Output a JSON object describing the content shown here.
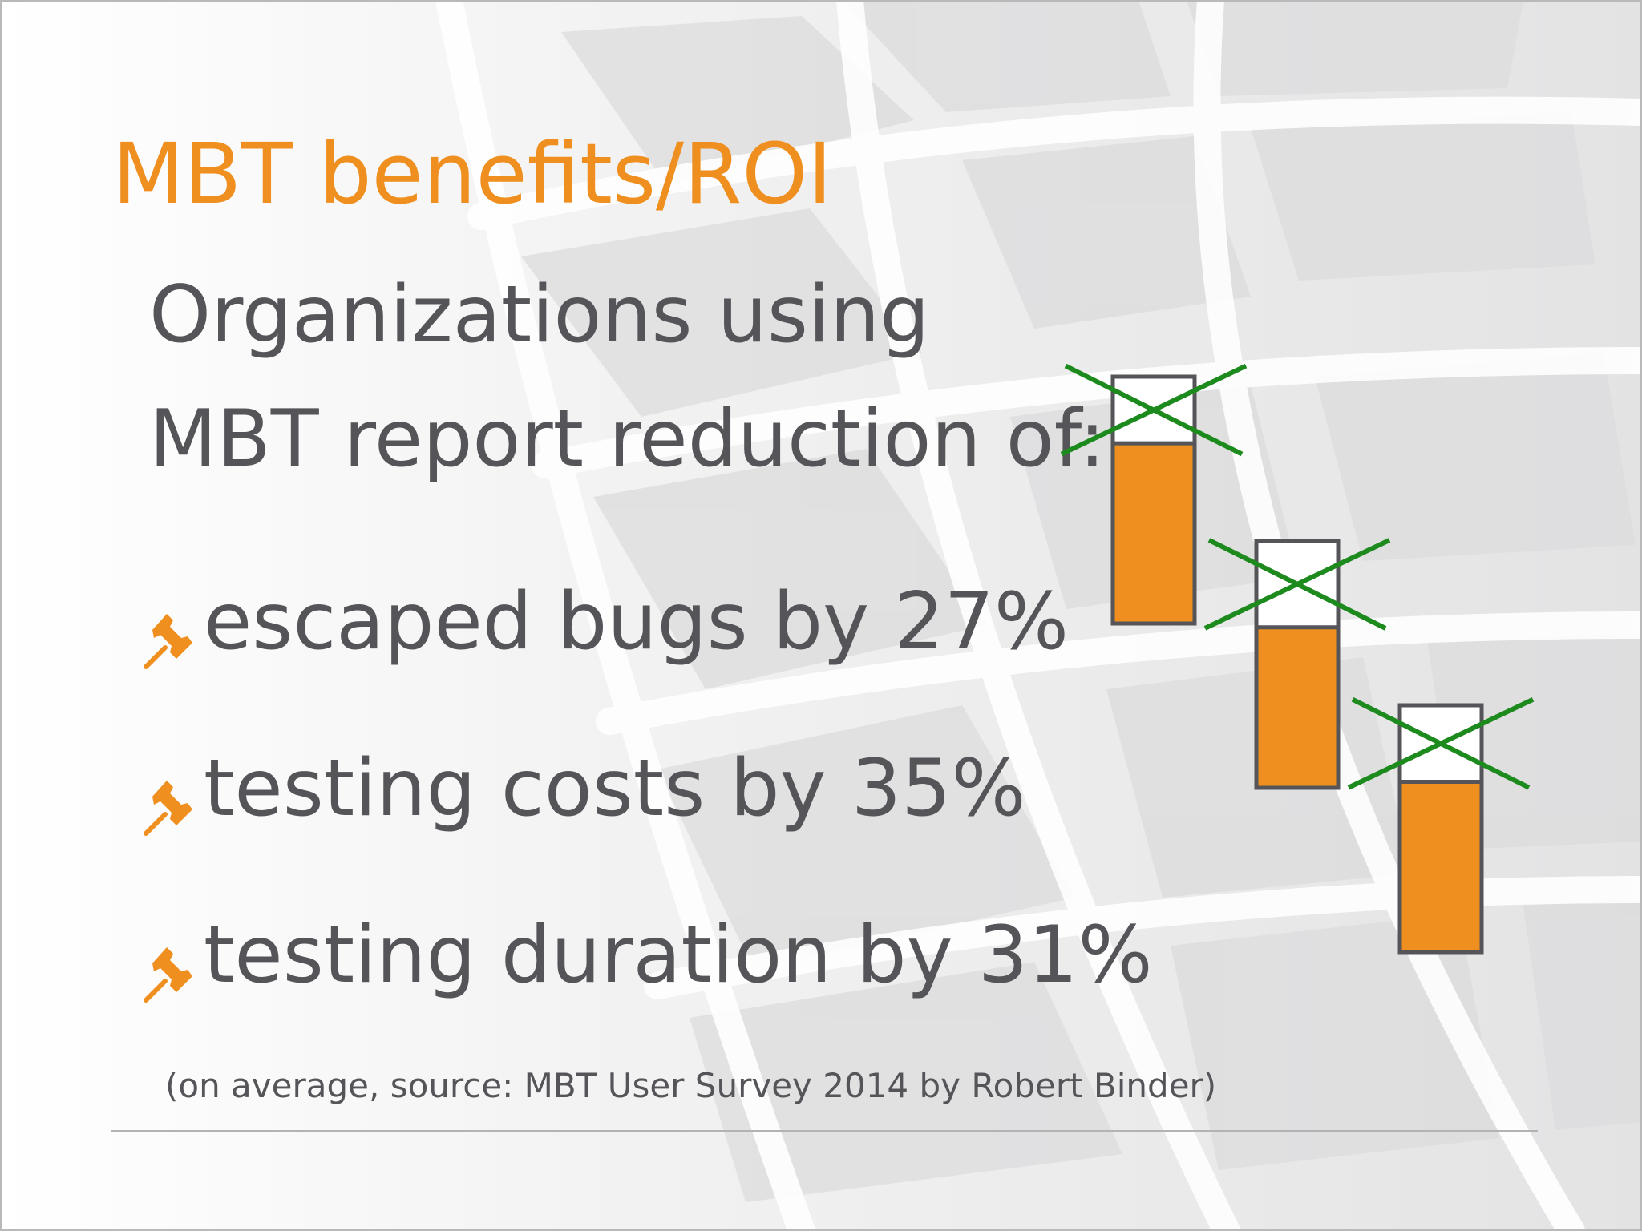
{
  "slide": {
    "title": "MBT benefits/ROI",
    "intro": "Organizations using MBT report reduction of:",
    "bullets": [
      {
        "label": "escaped bugs by 27%",
        "icon": "pushpin-icon"
      },
      {
        "label": "testing costs by 35%",
        "icon": "pushpin-icon"
      },
      {
        "label": "testing duration by 31%",
        "icon": "pushpin-icon"
      }
    ],
    "footnote": "(on average, source: MBT User Survey 2014 by Robert Binder)"
  },
  "colors": {
    "accent": "#ef8f1f",
    "text": "#555458",
    "cross": "#1d8a1d",
    "bar_outline": "#555458"
  },
  "chart_data": {
    "type": "bar",
    "categories": [
      "escaped bugs",
      "testing costs",
      "testing duration"
    ],
    "values": [
      27,
      35,
      31
    ],
    "unit": "%",
    "ylim": [
      0,
      100
    ]
  }
}
